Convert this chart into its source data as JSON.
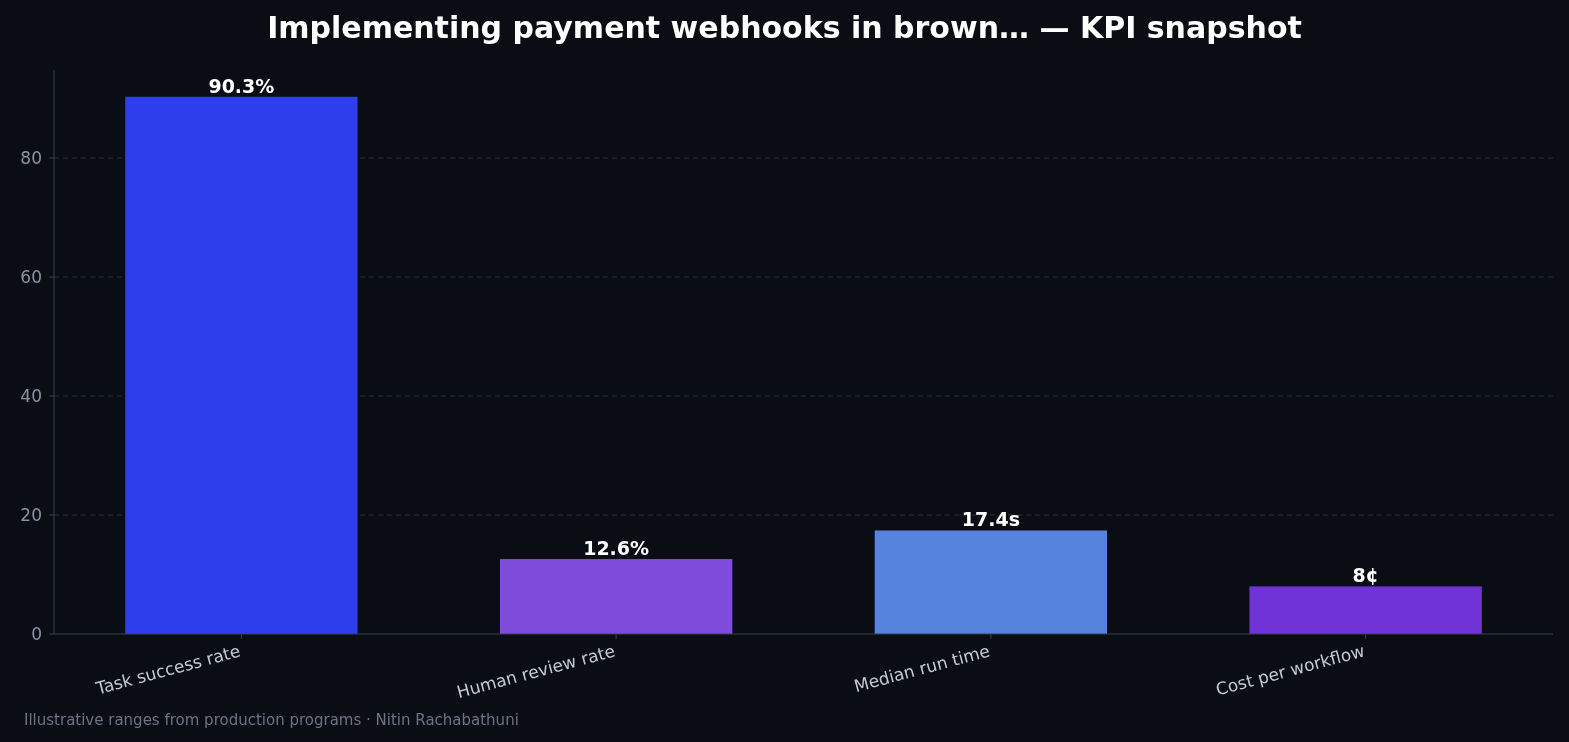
{
  "chart_data": {
    "type": "bar",
    "title": "Implementing payment webhooks in brown… — KPI snapshot",
    "categories": [
      "Task success rate",
      "Human review rate",
      "Median run time",
      "Cost per workflow"
    ],
    "values": [
      90.3,
      12.6,
      17.4,
      8
    ],
    "colors": [
      "#2e3eec",
      "#7f4cdc",
      "#5583de",
      "#7033d8"
    ],
    "value_labels": [
      "90.3%",
      "12.6%",
      "17.4s",
      "8¢"
    ],
    "ylim": [
      0,
      94.8
    ],
    "yticks": [
      0,
      20,
      40,
      60,
      80
    ],
    "grid": "y",
    "annotations": [
      "Illustrative ranges from production programs · Nitin Rachabathuni"
    ]
  }
}
